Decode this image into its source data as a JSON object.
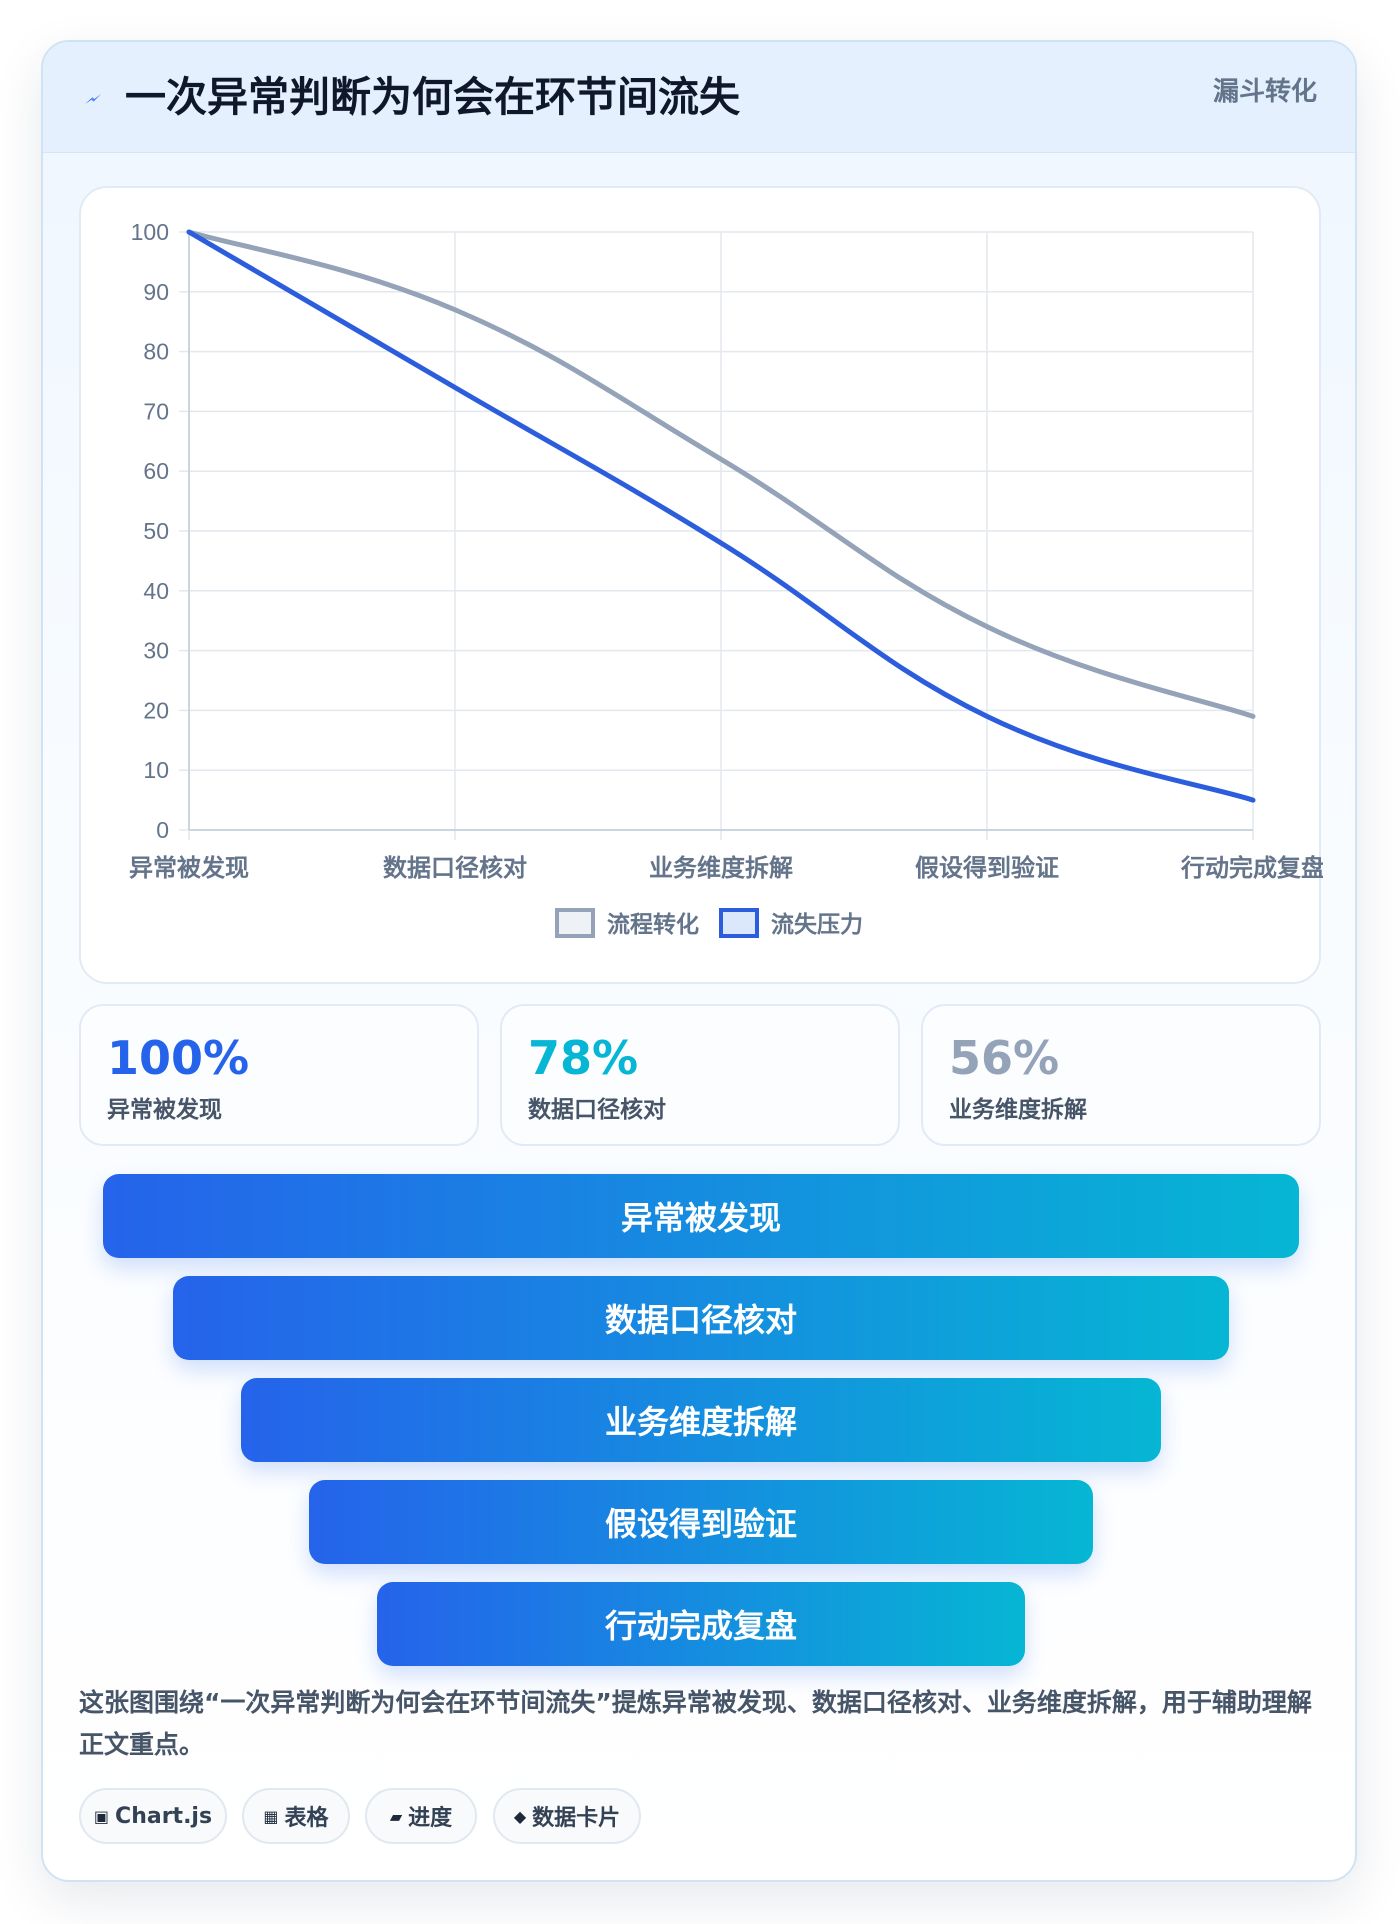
{
  "header": {
    "icon": "lightning-icon",
    "title": "一次异常判断为何会在环节间流失",
    "tag": "漏斗转化"
  },
  "chart_data": {
    "type": "line",
    "categories": [
      "异常被发现",
      "数据口径核对",
      "业务维度拆解",
      "假设得到验证",
      "行动完成复盘"
    ],
    "series": [
      {
        "name": "流程转化",
        "values": [
          100,
          87,
          62,
          34,
          19
        ],
        "color": "#94a3b8"
      },
      {
        "name": "流失压力",
        "values": [
          100,
          74,
          48,
          19,
          5
        ],
        "color": "#2b5ddd"
      }
    ],
    "ylim": [
      0,
      100
    ],
    "yticks": [
      0,
      10,
      20,
      30,
      40,
      50,
      60,
      70,
      80,
      90,
      100
    ],
    "grid": true,
    "legend": "bottom",
    "title": "",
    "xlabel": "",
    "ylabel": ""
  },
  "stats": [
    {
      "value": "100%",
      "label": "异常被发现",
      "color": "#2563eb"
    },
    {
      "value": "78%",
      "label": "数据口径核对",
      "color": "#06b6d4"
    },
    {
      "value": "56%",
      "label": "业务维度拆解",
      "color": "#94a3b8"
    }
  ],
  "funnel": [
    {
      "label": "异常被发现"
    },
    {
      "label": "数据口径核对"
    },
    {
      "label": "业务维度拆解"
    },
    {
      "label": "假设得到验证"
    },
    {
      "label": "行动完成复盘"
    }
  ],
  "caption": "这张图围绕“一次异常判断为何会在环节间流失”提炼异常被发现、数据口径核对、业务维度拆解，用于辅助理解正文重点。",
  "chips": [
    {
      "icon": "▣",
      "icon_name": "chart-icon",
      "label": "Chart.js"
    },
    {
      "icon": "▦",
      "icon_name": "table-icon",
      "label": "表格"
    },
    {
      "icon": "▰",
      "icon_name": "progress-icon",
      "label": "进度"
    },
    {
      "icon": "◆",
      "icon_name": "diamond-icon",
      "label": "数据卡片"
    }
  ]
}
